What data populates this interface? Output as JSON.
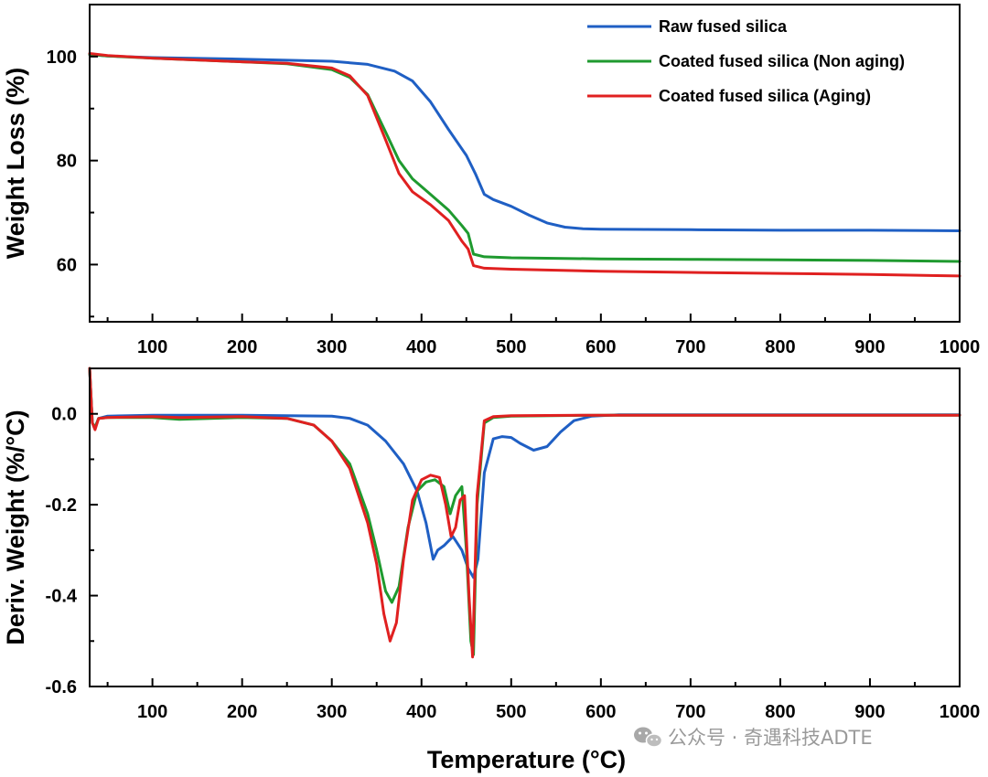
{
  "chart_data": [
    {
      "type": "line",
      "xlabel": "",
      "ylabel": "Weight Loss (%)",
      "xlim": [
        30,
        1000
      ],
      "ylim": [
        49,
        110
      ],
      "xticks": [
        100,
        200,
        300,
        400,
        500,
        600,
        700,
        800,
        900,
        1000
      ],
      "yticks": [
        60,
        80,
        100
      ],
      "legend_position": "top-right",
      "series": [
        {
          "name": "Raw fused silica",
          "color": "#1f5fc4",
          "x": [
            30,
            50,
            100,
            200,
            300,
            340,
            370,
            390,
            410,
            430,
            450,
            460,
            470,
            480,
            500,
            520,
            540,
            560,
            580,
            600,
            700,
            800,
            900,
            1000
          ],
          "y": [
            100.4,
            100.1,
            99.8,
            99.5,
            99.1,
            98.5,
            97.2,
            95.3,
            91.3,
            86,
            81,
            77.5,
            73.5,
            72.5,
            71.2,
            69.5,
            68,
            67.2,
            66.9,
            66.8,
            66.7,
            66.6,
            66.6,
            66.5
          ]
        },
        {
          "name": "Coated fused silica (Non aging)",
          "color": "#1f9a2f",
          "x": [
            30,
            50,
            100,
            200,
            250,
            300,
            320,
            340,
            360,
            375,
            390,
            410,
            430,
            445,
            452,
            458,
            470,
            500,
            600,
            700,
            800,
            900,
            1000
          ],
          "y": [
            100.4,
            100.1,
            99.7,
            99,
            98.6,
            97.5,
            96,
            92.7,
            85.5,
            80,
            76.5,
            73.5,
            70.5,
            67.5,
            66,
            62,
            61.5,
            61.3,
            61.1,
            61,
            60.9,
            60.8,
            60.6
          ]
        },
        {
          "name": "Coated fused silica (Aging)",
          "color": "#e02020",
          "x": [
            30,
            50,
            100,
            200,
            250,
            300,
            320,
            340,
            360,
            375,
            390,
            410,
            430,
            445,
            452,
            458,
            470,
            500,
            600,
            700,
            800,
            900,
            1000
          ],
          "y": [
            100.6,
            100.2,
            99.7,
            99,
            98.7,
            97.8,
            96.3,
            92.5,
            84,
            77.5,
            74,
            71.5,
            68.5,
            64.5,
            63,
            59.8,
            59.3,
            59.1,
            58.7,
            58.5,
            58.3,
            58.1,
            57.8
          ]
        }
      ]
    },
    {
      "type": "line",
      "xlabel": "Temperature (°C)",
      "ylabel": "Deriv. Weight (%/°C)",
      "xlim": [
        30,
        1000
      ],
      "ylim": [
        -0.6,
        0.1
      ],
      "xticks": [
        100,
        200,
        300,
        400,
        500,
        600,
        700,
        800,
        900,
        1000
      ],
      "yticks": [
        -0.6,
        -0.4,
        -0.2,
        0.0
      ],
      "yticklabels": [
        "-0.6",
        "-0.4",
        "-0.2",
        "0.0"
      ],
      "series": [
        {
          "name": "Raw fused silica",
          "color": "#1f5fc4",
          "x": [
            30,
            33,
            36,
            40,
            50,
            100,
            200,
            300,
            320,
            340,
            360,
            380,
            395,
            405,
            410,
            413,
            418,
            425,
            435,
            445,
            452,
            458,
            463,
            470,
            480,
            490,
            500,
            510,
            525,
            540,
            555,
            570,
            590,
            620,
            700,
            800,
            900,
            1000
          ],
          "y": [
            0.1,
            -0.02,
            -0.03,
            -0.01,
            -0.005,
            -0.003,
            -0.003,
            -0.005,
            -0.01,
            -0.025,
            -0.06,
            -0.11,
            -0.17,
            -0.24,
            -0.29,
            -0.32,
            -0.3,
            -0.29,
            -0.27,
            -0.3,
            -0.34,
            -0.36,
            -0.32,
            -0.13,
            -0.055,
            -0.05,
            -0.052,
            -0.065,
            -0.08,
            -0.072,
            -0.04,
            -0.015,
            -0.005,
            -0.002,
            -0.002,
            -0.002,
            -0.002,
            -0.002
          ]
        },
        {
          "name": "Coated fused silica (Non aging)",
          "color": "#1f9a2f",
          "x": [
            30,
            33,
            36,
            40,
            50,
            100,
            130,
            200,
            250,
            280,
            300,
            320,
            340,
            350,
            360,
            367,
            375,
            385,
            395,
            405,
            415,
            425,
            432,
            438,
            445,
            450,
            455,
            458,
            462,
            470,
            480,
            500,
            600,
            700,
            800,
            900,
            1000
          ],
          "y": [
            0.1,
            -0.02,
            -0.03,
            -0.01,
            -0.008,
            -0.008,
            -0.012,
            -0.008,
            -0.01,
            -0.025,
            -0.06,
            -0.11,
            -0.22,
            -0.3,
            -0.39,
            -0.415,
            -0.38,
            -0.25,
            -0.17,
            -0.15,
            -0.145,
            -0.16,
            -0.22,
            -0.18,
            -0.16,
            -0.3,
            -0.5,
            -0.53,
            -0.2,
            -0.02,
            -0.008,
            -0.005,
            -0.003,
            -0.003,
            -0.003,
            -0.003,
            -0.003
          ]
        },
        {
          "name": "Coated fused silica (Aging)",
          "color": "#e02020",
          "x": [
            30,
            33,
            36,
            40,
            50,
            100,
            130,
            200,
            250,
            280,
            300,
            320,
            340,
            350,
            358,
            365,
            372,
            380,
            390,
            400,
            410,
            420,
            427,
            433,
            438,
            443,
            448,
            453,
            457,
            462,
            470,
            480,
            500,
            600,
            700,
            800,
            900,
            1000
          ],
          "y": [
            0.1,
            -0.02,
            -0.035,
            -0.01,
            -0.008,
            -0.006,
            -0.008,
            -0.006,
            -0.01,
            -0.025,
            -0.06,
            -0.12,
            -0.24,
            -0.33,
            -0.44,
            -0.5,
            -0.46,
            -0.32,
            -0.19,
            -0.145,
            -0.135,
            -0.14,
            -0.2,
            -0.27,
            -0.25,
            -0.19,
            -0.18,
            -0.4,
            -0.535,
            -0.18,
            -0.015,
            -0.006,
            -0.004,
            -0.003,
            -0.003,
            -0.003,
            -0.003,
            -0.003
          ]
        }
      ]
    }
  ],
  "watermark": {
    "text": "公众号 · 奇遇科技ADTE",
    "icon": "wechat-icon"
  }
}
